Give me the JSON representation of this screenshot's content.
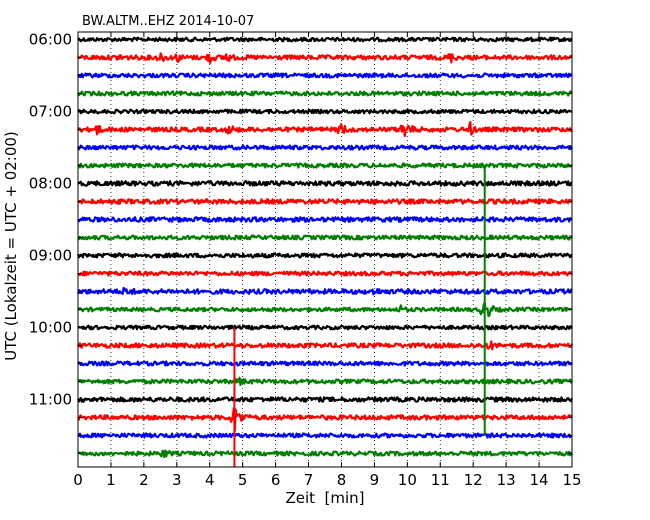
{
  "chart_data": {
    "type": "line",
    "title": "BW.ALTM..EHZ 2014-10-07",
    "xlabel": "Zeit  [min]",
    "ylabel": "UTC (Lokalzeit = UTC + 02:00)",
    "xlim": [
      0,
      15
    ],
    "x_ticks": [
      "0",
      "1",
      "2",
      "3",
      "4",
      "5",
      "6",
      "7",
      "8",
      "9",
      "10",
      "11",
      "12",
      "13",
      "14",
      "15"
    ],
    "y_ticks": [
      "06:00",
      "07:00",
      "08:00",
      "09:00",
      "10:00",
      "11:00"
    ],
    "row_minutes": 15,
    "start_time": "06:00",
    "trace_colors": [
      "#000000",
      "#ff0000",
      "#0000ff",
      "#008000"
    ],
    "grid": true,
    "rows": [
      {
        "start": "06:00",
        "color": "black",
        "amp": 0.2,
        "events": []
      },
      {
        "start": "06:15",
        "color": "red",
        "amp": 0.24,
        "events": [
          [
            1.3,
            0.5
          ],
          [
            2.5,
            0.6
          ],
          [
            3.0,
            0.5
          ],
          [
            4.0,
            0.6
          ],
          [
            4.5,
            0.55
          ],
          [
            11.3,
            0.6
          ]
        ]
      },
      {
        "start": "06:30",
        "color": "blue",
        "amp": 0.22,
        "events": []
      },
      {
        "start": "06:45",
        "color": "green",
        "amp": 0.22,
        "events": []
      },
      {
        "start": "07:00",
        "color": "black",
        "amp": 0.2,
        "events": []
      },
      {
        "start": "07:15",
        "color": "red",
        "amp": 0.24,
        "events": [
          [
            0.55,
            0.7
          ],
          [
            4.6,
            0.6
          ],
          [
            8.0,
            0.9
          ],
          [
            9.9,
            1.2
          ],
          [
            11.9,
            0.75
          ]
        ]
      },
      {
        "start": "07:30",
        "color": "blue",
        "amp": 0.22,
        "events": []
      },
      {
        "start": "07:45",
        "color": "green",
        "amp": 0.22,
        "events": []
      },
      {
        "start": "08:00",
        "color": "black",
        "amp": 0.25,
        "events": []
      },
      {
        "start": "08:15",
        "color": "red",
        "amp": 0.25,
        "events": []
      },
      {
        "start": "08:30",
        "color": "blue",
        "amp": 0.25,
        "events": []
      },
      {
        "start": "08:45",
        "color": "green",
        "amp": 0.22,
        "events": []
      },
      {
        "start": "09:00",
        "color": "black",
        "amp": 0.22,
        "events": []
      },
      {
        "start": "09:15",
        "color": "red",
        "amp": 0.22,
        "events": []
      },
      {
        "start": "09:30",
        "color": "blue",
        "amp": 0.25,
        "events": [
          [
            1.45,
            0.7
          ],
          [
            9.0,
            0.4
          ]
        ]
      },
      {
        "start": "09:45",
        "color": "green",
        "amp": 0.2,
        "events": [
          [
            9.8,
            0.4
          ],
          [
            12.35,
            1.6
          ]
        ]
      },
      {
        "start": "10:00",
        "color": "black",
        "amp": 0.2,
        "events": []
      },
      {
        "start": "10:15",
        "color": "red",
        "amp": 0.24,
        "events": [
          [
            12.5,
            0.5
          ]
        ]
      },
      {
        "start": "10:30",
        "color": "blue",
        "amp": 0.22,
        "events": []
      },
      {
        "start": "10:45",
        "color": "green",
        "amp": 0.22,
        "events": [
          [
            4.9,
            0.4
          ]
        ]
      },
      {
        "start": "11:00",
        "color": "black",
        "amp": 0.24,
        "events": []
      },
      {
        "start": "11:15",
        "color": "red",
        "amp": 0.24,
        "events": [
          [
            4.75,
            1.8
          ]
        ]
      },
      {
        "start": "11:30",
        "color": "blue",
        "amp": 0.22,
        "events": []
      },
      {
        "start": "11:45",
        "color": "green",
        "amp": 0.22,
        "events": [
          [
            2.6,
            0.5
          ]
        ]
      }
    ],
    "spikes": [
      {
        "x": 12.35,
        "y_from": "07:45",
        "y_to": "11:30",
        "color": "green"
      },
      {
        "x": 4.75,
        "y_from": "10:00",
        "y_to": "12:00",
        "color": "red"
      }
    ]
  }
}
